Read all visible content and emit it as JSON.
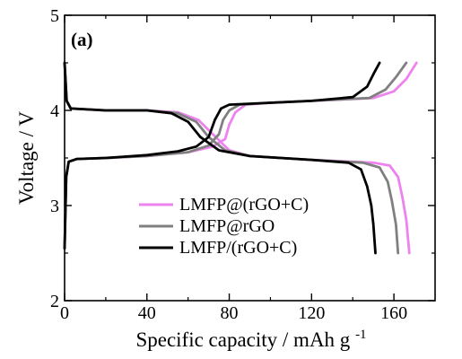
{
  "chart_data": {
    "type": "line",
    "panel_label": "(a)",
    "xlabel": "Specific capacity / mAh g",
    "xlabel_superscript": "-1",
    "ylabel": "Voltage / V",
    "xlim": [
      0,
      180
    ],
    "ylim": [
      2,
      5
    ],
    "x_ticks": [
      0,
      40,
      80,
      120,
      160
    ],
    "x_tick_labels": [
      "0",
      "40",
      "80",
      "120",
      "160"
    ],
    "y_ticks": [
      2,
      3,
      4,
      5
    ],
    "y_tick_labels": [
      "2",
      "3",
      "4",
      "5"
    ],
    "grid": false,
    "legend_position": "bottom-center",
    "series": [
      {
        "name": "LMFP@(rGO+C)",
        "color": "#ee82ee",
        "charge": [
          [
            0,
            2.55
          ],
          [
            0.8,
            3.3
          ],
          [
            2,
            3.46
          ],
          [
            6,
            3.49
          ],
          [
            20,
            3.5
          ],
          [
            40,
            3.52
          ],
          [
            60,
            3.56
          ],
          [
            72,
            3.62
          ],
          [
            78,
            3.7
          ],
          [
            80,
            3.85
          ],
          [
            83,
            3.98
          ],
          [
            88,
            4.06
          ],
          [
            100,
            4.08
          ],
          [
            120,
            4.1
          ],
          [
            150,
            4.13
          ],
          [
            160,
            4.2
          ],
          [
            166,
            4.33
          ],
          [
            171,
            4.5
          ]
        ],
        "discharge": [
          [
            0,
            4.5
          ],
          [
            1,
            4.1
          ],
          [
            3,
            4.02
          ],
          [
            20,
            4.0
          ],
          [
            40,
            4.0
          ],
          [
            55,
            3.98
          ],
          [
            65,
            3.9
          ],
          [
            72,
            3.75
          ],
          [
            80,
            3.58
          ],
          [
            90,
            3.52
          ],
          [
            120,
            3.48
          ],
          [
            150,
            3.45
          ],
          [
            158,
            3.42
          ],
          [
            162,
            3.3
          ],
          [
            164,
            3.1
          ],
          [
            166,
            2.85
          ],
          [
            167.5,
            2.5
          ]
        ]
      },
      {
        "name": "LMFP@rGO",
        "color": "#808080",
        "charge": [
          [
            0,
            2.55
          ],
          [
            0.8,
            3.3
          ],
          [
            2,
            3.46
          ],
          [
            6,
            3.49
          ],
          [
            20,
            3.5
          ],
          [
            40,
            3.52
          ],
          [
            60,
            3.56
          ],
          [
            70,
            3.63
          ],
          [
            75,
            3.75
          ],
          [
            77,
            3.9
          ],
          [
            80,
            4.0
          ],
          [
            85,
            4.06
          ],
          [
            100,
            4.08
          ],
          [
            120,
            4.1
          ],
          [
            148,
            4.13
          ],
          [
            156,
            4.22
          ],
          [
            161,
            4.35
          ],
          [
            166,
            4.5
          ]
        ],
        "discharge": [
          [
            0,
            4.5
          ],
          [
            1,
            4.1
          ],
          [
            3,
            4.02
          ],
          [
            20,
            4.0
          ],
          [
            40,
            4.0
          ],
          [
            55,
            3.97
          ],
          [
            64,
            3.88
          ],
          [
            70,
            3.72
          ],
          [
            78,
            3.58
          ],
          [
            90,
            3.52
          ],
          [
            120,
            3.48
          ],
          [
            145,
            3.45
          ],
          [
            153,
            3.4
          ],
          [
            157,
            3.25
          ],
          [
            159,
            3.05
          ],
          [
            161,
            2.8
          ],
          [
            162,
            2.5
          ]
        ]
      },
      {
        "name": "LMFP/(rGO+C)",
        "color": "#000000",
        "charge": [
          [
            0,
            2.55
          ],
          [
            0.8,
            3.3
          ],
          [
            2,
            3.46
          ],
          [
            6,
            3.49
          ],
          [
            20,
            3.5
          ],
          [
            40,
            3.53
          ],
          [
            55,
            3.57
          ],
          [
            64,
            3.62
          ],
          [
            70,
            3.72
          ],
          [
            73,
            3.9
          ],
          [
            76,
            4.02
          ],
          [
            80,
            4.06
          ],
          [
            100,
            4.08
          ],
          [
            120,
            4.1
          ],
          [
            140,
            4.14
          ],
          [
            147,
            4.25
          ],
          [
            150,
            4.38
          ],
          [
            153,
            4.5
          ]
        ],
        "discharge": [
          [
            0,
            4.5
          ],
          [
            1,
            4.1
          ],
          [
            3,
            4.02
          ],
          [
            20,
            4.0
          ],
          [
            40,
            4.0
          ],
          [
            52,
            3.97
          ],
          [
            60,
            3.88
          ],
          [
            66,
            3.72
          ],
          [
            75,
            3.58
          ],
          [
            90,
            3.52
          ],
          [
            120,
            3.48
          ],
          [
            138,
            3.45
          ],
          [
            144,
            3.38
          ],
          [
            147,
            3.2
          ],
          [
            149,
            3.0
          ],
          [
            150,
            2.8
          ],
          [
            151,
            2.5
          ]
        ]
      }
    ]
  }
}
